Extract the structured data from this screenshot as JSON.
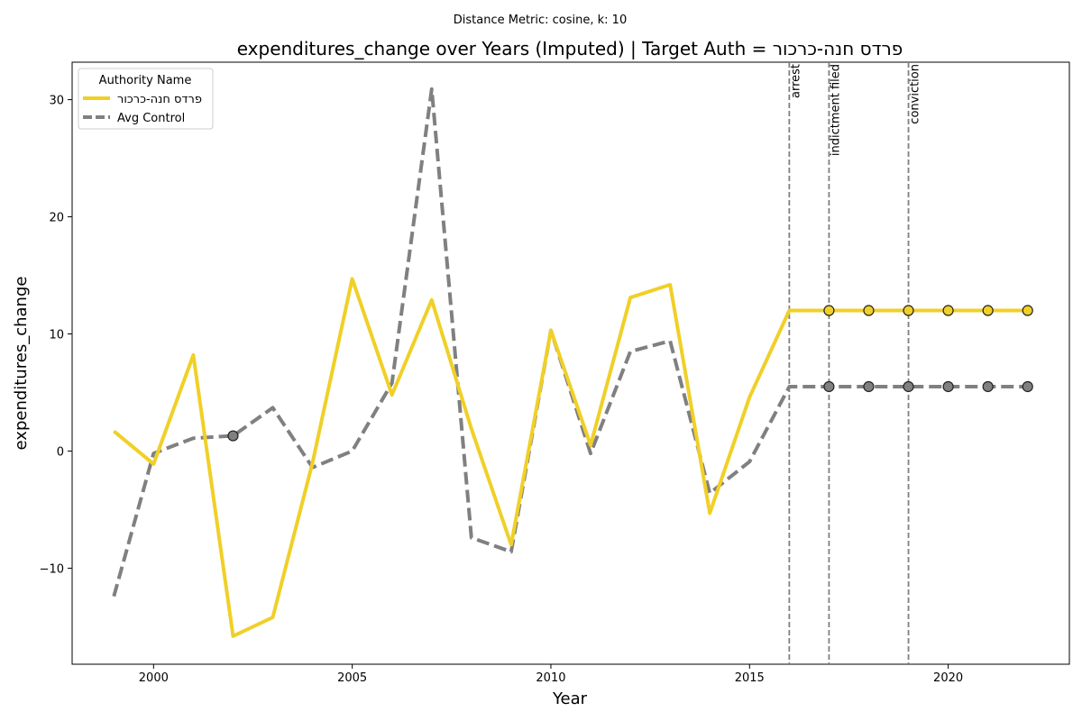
{
  "chart_data": {
    "type": "line",
    "subtitle": "Distance Metric: cosine, k: 10",
    "title": "expenditures_change over Years (Imputed) | Target Auth = פרדס חנה-כרכור",
    "xlabel": "Year",
    "ylabel": "expenditures_change",
    "xlim": [
      1997.95,
      2023.05
    ],
    "ylim": [
      -18.2,
      33.2
    ],
    "xticks": [
      2000,
      2005,
      2010,
      2015,
      2020
    ],
    "yticks": [
      -10,
      0,
      10,
      20,
      30
    ],
    "legend": {
      "title": "Authority Name",
      "placement": "top-left"
    },
    "x": [
      1999,
      2000,
      2001,
      2002,
      2003,
      2004,
      2005,
      2006,
      2007,
      2008,
      2009,
      2010,
      2011,
      2012,
      2013,
      2014,
      2015,
      2016,
      2017,
      2018,
      2019,
      2020,
      2021,
      2022
    ],
    "series": [
      {
        "name": "פרדס חנה-כרכור",
        "color": "#f0d028",
        "style": "solid",
        "values": [
          1.7,
          -1.1,
          8.2,
          -15.8,
          -14.2,
          -1.0,
          14.7,
          4.8,
          12.9,
          1.9,
          -8.0,
          10.3,
          0.5,
          13.1,
          14.2,
          -5.3,
          4.6,
          12.0,
          12.0,
          12.0,
          12.0,
          12.0,
          12.0,
          12.0
        ],
        "imputed_markers": [
          2017,
          2018,
          2019,
          2020,
          2021,
          2022
        ]
      },
      {
        "name": "Avg Control",
        "color": "#808080",
        "style": "dashed",
        "values": [
          -12.4,
          -0.2,
          1.1,
          1.3,
          3.7,
          -1.4,
          0.0,
          5.8,
          30.9,
          -7.4,
          -8.6,
          10.3,
          -0.2,
          8.5,
          9.4,
          -3.6,
          -0.9,
          5.5,
          5.5,
          5.5,
          5.5,
          5.5,
          5.5,
          5.5
        ],
        "imputed_markers": [
          2002,
          2017,
          2018,
          2019,
          2020,
          2021,
          2022
        ]
      }
    ],
    "events": [
      {
        "x": 2016,
        "label": "arrest"
      },
      {
        "x": 2017,
        "label": "indictment filed"
      },
      {
        "x": 2019,
        "label": "conviction"
      }
    ]
  }
}
